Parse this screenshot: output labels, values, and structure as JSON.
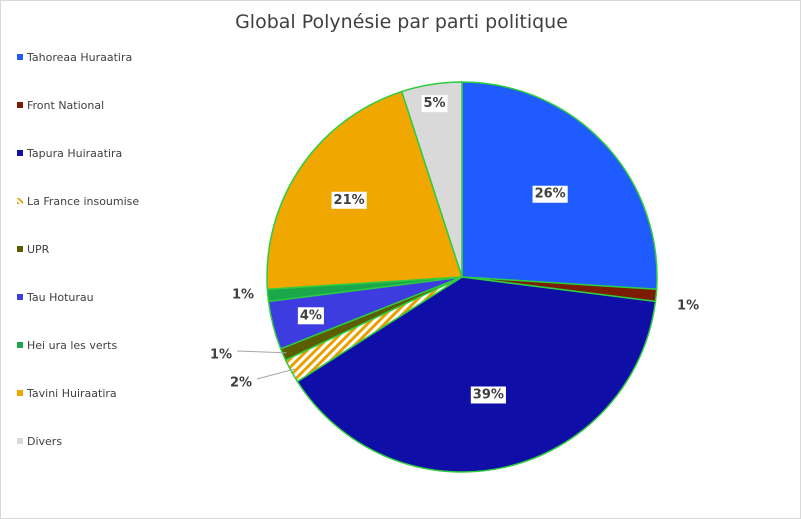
{
  "chart_data": {
    "type": "pie",
    "title": "Global Polynésie par parti politique",
    "legend_position": "left",
    "slices": [
      {
        "name": "Tahoreaa Huraatira",
        "value": 26,
        "label": "26%",
        "color": "#1f5bff"
      },
      {
        "name": "Front National",
        "value": 1,
        "label": "1%",
        "color": "#7b1c05"
      },
      {
        "name": "Tapura Huiraatira",
        "value": 39,
        "label": "39%",
        "color": "#0f0fa8"
      },
      {
        "name": "La France insoumise",
        "value": 2,
        "label": "2%",
        "color": "#e8a000",
        "pattern": "hatch"
      },
      {
        "name": "UPR",
        "value": 1,
        "label": "1%",
        "color": "#5c5c00"
      },
      {
        "name": "Tau Hoturau",
        "value": 4,
        "label": "4%",
        "color": "#3c3ce0"
      },
      {
        "name": "Hei ura les verts",
        "value": 1,
        "label": "1%",
        "color": "#1aa84a"
      },
      {
        "name": "Tavini Huiraatira",
        "value": 21,
        "label": "21%",
        "color": "#f0a800"
      },
      {
        "name": "Divers",
        "value": 5,
        "label": "5%",
        "color": "#d9d9d9"
      }
    ],
    "slice_border_color": "#2ecc40"
  }
}
